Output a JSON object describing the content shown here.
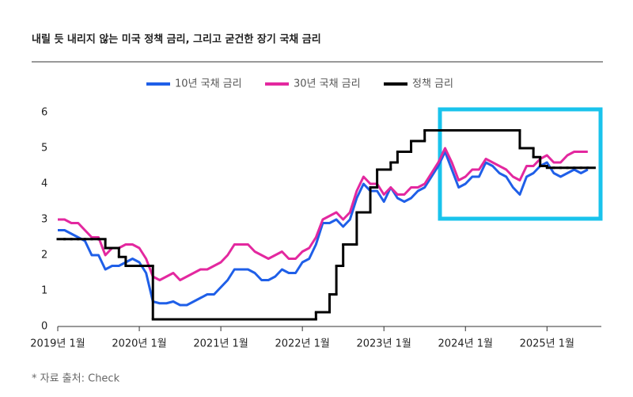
{
  "chart_data": {
    "type": "line",
    "title": "내릴 듯 내리지 않는 미국 정책 금리, 그리고 굳건한 장기 국채 금리",
    "source": "* 자료 출처: Check",
    "x": [
      "2019-01",
      "2019-02",
      "2019-03",
      "2019-04",
      "2019-05",
      "2019-06",
      "2019-07",
      "2019-08",
      "2019-09",
      "2019-10",
      "2019-11",
      "2019-12",
      "2020-01",
      "2020-02",
      "2020-03",
      "2020-04",
      "2020-05",
      "2020-06",
      "2020-07",
      "2020-08",
      "2020-09",
      "2020-10",
      "2020-11",
      "2020-12",
      "2021-01",
      "2021-02",
      "2021-03",
      "2021-04",
      "2021-05",
      "2021-06",
      "2021-07",
      "2021-08",
      "2021-09",
      "2021-10",
      "2021-11",
      "2021-12",
      "2022-01",
      "2022-02",
      "2022-03",
      "2022-04",
      "2022-05",
      "2022-06",
      "2022-07",
      "2022-08",
      "2022-09",
      "2022-10",
      "2022-11",
      "2022-12",
      "2023-01",
      "2023-02",
      "2023-03",
      "2023-04",
      "2023-05",
      "2023-06",
      "2023-07",
      "2023-08",
      "2023-09",
      "2023-10",
      "2023-11",
      "2023-12",
      "2024-01",
      "2024-02",
      "2024-03",
      "2024-04",
      "2024-05",
      "2024-06",
      "2024-07",
      "2024-08",
      "2024-09",
      "2024-10",
      "2024-11",
      "2024-12",
      "2025-01",
      "2025-02",
      "2025-03",
      "2025-04",
      "2025-05",
      "2025-06",
      "2025-07"
    ],
    "series": [
      {
        "name": "10년 국채 금리",
        "color": "#1f5fe8",
        "values": [
          2.7,
          2.7,
          2.6,
          2.5,
          2.4,
          2.0,
          2.0,
          1.6,
          1.7,
          1.7,
          1.8,
          1.9,
          1.8,
          1.5,
          0.7,
          0.65,
          0.65,
          0.7,
          0.6,
          0.6,
          0.7,
          0.8,
          0.9,
          0.9,
          1.1,
          1.3,
          1.6,
          1.6,
          1.6,
          1.5,
          1.3,
          1.3,
          1.4,
          1.6,
          1.5,
          1.5,
          1.8,
          1.9,
          2.3,
          2.9,
          2.9,
          3.0,
          2.8,
          3.0,
          3.6,
          4.0,
          3.8,
          3.8,
          3.5,
          3.9,
          3.6,
          3.5,
          3.6,
          3.8,
          3.9,
          4.2,
          4.5,
          4.9,
          4.4,
          3.9,
          4.0,
          4.2,
          4.2,
          4.6,
          4.5,
          4.3,
          4.2,
          3.9,
          3.7,
          4.2,
          4.3,
          4.5,
          4.6,
          4.3,
          4.2,
          4.3,
          4.4,
          4.3,
          4.4
        ]
      },
      {
        "name": "30년 국채 금리",
        "color": "#e3289f",
        "values": [
          3.0,
          3.0,
          2.9,
          2.9,
          2.7,
          2.5,
          2.5,
          2.0,
          2.2,
          2.2,
          2.3,
          2.3,
          2.2,
          1.9,
          1.4,
          1.3,
          1.4,
          1.5,
          1.3,
          1.4,
          1.5,
          1.6,
          1.6,
          1.7,
          1.8,
          2.0,
          2.3,
          2.3,
          2.3,
          2.1,
          2.0,
          1.9,
          2.0,
          2.1,
          1.9,
          1.9,
          2.1,
          2.2,
          2.5,
          3.0,
          3.1,
          3.2,
          3.0,
          3.2,
          3.8,
          4.2,
          4.0,
          4.0,
          3.7,
          3.9,
          3.7,
          3.7,
          3.9,
          3.9,
          4.0,
          4.3,
          4.6,
          5.0,
          4.6,
          4.1,
          4.2,
          4.4,
          4.4,
          4.7,
          4.6,
          4.5,
          4.4,
          4.2,
          4.1,
          4.5,
          4.5,
          4.7,
          4.8,
          4.6,
          4.6,
          4.8,
          4.9,
          4.9,
          4.9
        ]
      },
      {
        "name": "정책 금리",
        "color": "#000000",
        "step": true,
        "values": [
          2.45,
          2.45,
          2.45,
          2.45,
          2.45,
          2.45,
          2.45,
          2.2,
          2.2,
          1.95,
          1.7,
          1.7,
          1.7,
          1.7,
          0.2,
          0.2,
          0.2,
          0.2,
          0.2,
          0.2,
          0.2,
          0.2,
          0.2,
          0.2,
          0.2,
          0.2,
          0.2,
          0.2,
          0.2,
          0.2,
          0.2,
          0.2,
          0.2,
          0.2,
          0.2,
          0.2,
          0.2,
          0.2,
          0.4,
          0.4,
          0.9,
          1.7,
          2.3,
          2.3,
          3.2,
          3.2,
          3.9,
          4.4,
          4.4,
          4.6,
          4.9,
          4.9,
          5.2,
          5.2,
          5.5,
          5.5,
          5.5,
          5.5,
          5.5,
          5.5,
          5.5,
          5.5,
          5.5,
          5.5,
          5.5,
          5.5,
          5.5,
          5.5,
          5.0,
          5.0,
          4.75,
          4.5,
          4.45,
          4.45,
          4.45,
          4.45,
          4.45,
          4.45,
          4.45
        ]
      }
    ],
    "xlim": [
      "2019-01",
      "2025-09"
    ],
    "xticks": [
      {
        "value": "2019-01",
        "label": "2019년 1월"
      },
      {
        "value": "2020-01",
        "label": "2020년 1월"
      },
      {
        "value": "2021-01",
        "label": "2021년 1월"
      },
      {
        "value": "2022-01",
        "label": "2022년 1월"
      },
      {
        "value": "2023-01",
        "label": "2023년 1월"
      },
      {
        "value": "2024-01",
        "label": "2024년 1월"
      },
      {
        "value": "2025-01",
        "label": "2025년 1월"
      }
    ],
    "ylim": [
      0,
      6
    ],
    "yticks": [
      0,
      1,
      2,
      3,
      4,
      5,
      6
    ],
    "grid": false,
    "legend": "top"
  }
}
